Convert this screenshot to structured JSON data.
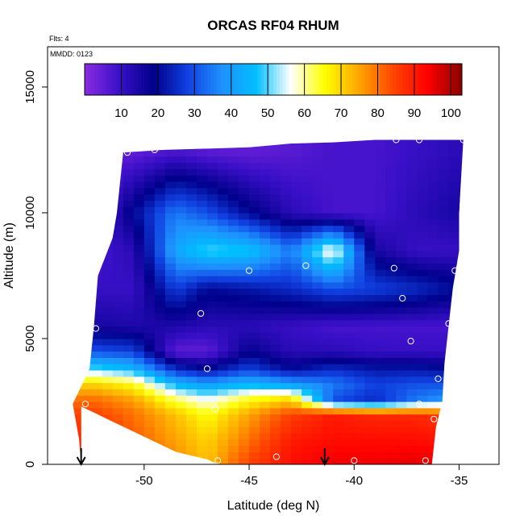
{
  "chart_data": {
    "type": "heatmap",
    "title": "ORCAS RF04 RHUM",
    "annotations": [
      "Flts: 4",
      "MMDD: 0123"
    ],
    "xlabel": "Latitude (deg N)",
    "ylabel": "Altitude (m)",
    "xlim": [
      -54.6,
      -33.1
    ],
    "ylim": [
      0,
      16600
    ],
    "xticks": [
      -50,
      -45,
      -40,
      -35
    ],
    "yticks": [
      0,
      5000,
      10000,
      15000
    ],
    "colorbar": {
      "range": [
        0,
        103
      ],
      "ticks": [
        10,
        20,
        30,
        40,
        50,
        60,
        70,
        80,
        90,
        100
      ],
      "colors": [
        "#8a2be2",
        "#3a10c8",
        "#00008b",
        "#1040e0",
        "#1e90ff",
        "#00bfff",
        "#ffffff",
        "#ffff00",
        "#ffa500",
        "#ff4500",
        "#ff0000",
        "#8b0000"
      ]
    },
    "profiles": [
      {
        "x": -52.3,
        "alt": [
          0,
          1000,
          2000,
          2600,
          3200,
          3800,
          4500,
          5500,
          7000,
          8500,
          10000,
          12400
        ],
        "rh": [
          90,
          88,
          85,
          80,
          70,
          50,
          30,
          15,
          10,
          8,
          6,
          5
        ]
      },
      {
        "x": -50.5,
        "alt": [
          0,
          1000,
          2000,
          2600,
          3200,
          3800,
          4500,
          5500,
          7000,
          8500,
          10000,
          12400
        ],
        "rh": [
          85,
          82,
          80,
          75,
          65,
          45,
          28,
          14,
          10,
          12,
          20,
          5
        ]
      },
      {
        "x": -48.5,
        "alt": [
          0,
          1000,
          2000,
          2600,
          3200,
          3800,
          4500,
          5500,
          7000,
          8500,
          10000,
          12400
        ],
        "rh": [
          78,
          75,
          72,
          62,
          45,
          25,
          5,
          14,
          28,
          42,
          35,
          8
        ]
      },
      {
        "x": -47.0,
        "alt": [
          0,
          1000,
          2000,
          2600,
          3200,
          3800,
          4500,
          5500,
          7000,
          8500,
          10000,
          12400
        ],
        "rh": [
          72,
          70,
          65,
          55,
          40,
          20,
          5,
          12,
          20,
          50,
          30,
          6
        ]
      },
      {
        "x": -45.0,
        "alt": [
          0,
          1000,
          2000,
          2600,
          3200,
          3800,
          4500,
          5500,
          7000,
          8500,
          10000,
          12400
        ],
        "rh": [
          85,
          80,
          75,
          65,
          45,
          28,
          18,
          12,
          22,
          48,
          20,
          5
        ]
      },
      {
        "x": -43.0,
        "alt": [
          0,
          1000,
          2000,
          2600,
          3200,
          3800,
          4500,
          5500,
          7000,
          8500,
          10000,
          12400
        ],
        "rh": [
          92,
          90,
          85,
          70,
          40,
          20,
          12,
          10,
          25,
          35,
          12,
          6
        ]
      },
      {
        "x": -41.0,
        "alt": [
          0,
          1000,
          2000,
          2600,
          3200,
          3800,
          4500,
          5500,
          7000,
          8500,
          10000,
          12400
        ],
        "rh": [
          95,
          92,
          90,
          30,
          35,
          25,
          12,
          8,
          30,
          60,
          8,
          8
        ]
      },
      {
        "x": -39.0,
        "alt": [
          0,
          1000,
          2000,
          2600,
          3200,
          3800,
          4500,
          5500,
          7000,
          8500,
          10000,
          12400
        ],
        "rh": [
          95,
          92,
          88,
          25,
          28,
          22,
          10,
          8,
          28,
          15,
          8,
          8
        ]
      },
      {
        "x": -37.0,
        "alt": [
          0,
          1000,
          2000,
          2600,
          3200,
          3800,
          4500,
          5500,
          7000,
          8500,
          10000,
          12400
        ],
        "rh": [
          96,
          92,
          88,
          35,
          30,
          22,
          10,
          8,
          25,
          10,
          12,
          10
        ]
      },
      {
        "x": -35.0,
        "alt": [
          0,
          1000,
          2000,
          2600,
          3200,
          3800,
          4500,
          5500,
          7000,
          8500,
          10000,
          12400
        ],
        "rh": [
          95,
          90,
          85,
          40,
          30,
          20,
          10,
          8,
          20,
          10,
          15,
          12
        ]
      }
    ],
    "domain_edges": {
      "left": [
        [
          0,
          -53.0
        ],
        [
          1000,
          -53.1
        ],
        [
          2400,
          -53.4
        ],
        [
          3800,
          -52.6
        ],
        [
          5400,
          -52.4
        ],
        [
          7500,
          -52.2
        ],
        [
          9000,
          -51.5
        ],
        [
          10000,
          -51.3
        ],
        [
          12400,
          -51.0
        ]
      ],
      "right": [
        [
          0,
          -36.3
        ],
        [
          1500,
          -36.1
        ],
        [
          2500,
          -35.8
        ],
        [
          4000,
          -35.7
        ],
        [
          5500,
          -35.5
        ],
        [
          7000,
          -35.3
        ],
        [
          8500,
          -35.0
        ],
        [
          10000,
          -35.0
        ],
        [
          12900,
          -34.8
        ]
      ],
      "top": [
        [
          -51.0,
          12400
        ],
        [
          -49.0,
          12500
        ],
        [
          -45.0,
          12600
        ],
        [
          -43.0,
          12750
        ],
        [
          -41.0,
          12800
        ],
        [
          -39.0,
          12900
        ],
        [
          -34.8,
          12900
        ]
      ],
      "bottom": [
        [
          -53.0,
          2300
        ],
        [
          -51.0,
          1500
        ],
        [
          -49.5,
          900
        ],
        [
          -48.5,
          500
        ],
        [
          -47.0,
          200
        ],
        [
          -46.5,
          0
        ],
        [
          -36.3,
          0
        ]
      ]
    },
    "points": [
      {
        "x": -50.8,
        "y": 12400
      },
      {
        "x": -49.5,
        "y": 12500
      },
      {
        "x": -38.0,
        "y": 12900
      },
      {
        "x": -36.9,
        "y": 12900
      },
      {
        "x": -34.8,
        "y": 12900
      },
      {
        "x": -45.0,
        "y": 7700
      },
      {
        "x": -42.3,
        "y": 7900
      },
      {
        "x": -38.1,
        "y": 7800
      },
      {
        "x": -35.2,
        "y": 7700
      },
      {
        "x": -37.7,
        "y": 6600
      },
      {
        "x": -47.3,
        "y": 6000
      },
      {
        "x": -52.3,
        "y": 5400
      },
      {
        "x": -35.5,
        "y": 5600
      },
      {
        "x": -37.3,
        "y": 4900
      },
      {
        "x": -47.0,
        "y": 3800
      },
      {
        "x": -36.0,
        "y": 3400
      },
      {
        "x": -36.9,
        "y": 2400
      },
      {
        "x": -52.8,
        "y": 2400
      },
      {
        "x": -46.6,
        "y": 2200
      },
      {
        "x": -36.2,
        "y": 1800
      },
      {
        "x": -46.5,
        "y": 150
      },
      {
        "x": -43.7,
        "y": 300
      },
      {
        "x": -40.0,
        "y": 150
      },
      {
        "x": -36.6,
        "y": 150
      }
    ],
    "arrows": [
      {
        "x": -53.0
      },
      {
        "x": -41.4
      }
    ]
  }
}
